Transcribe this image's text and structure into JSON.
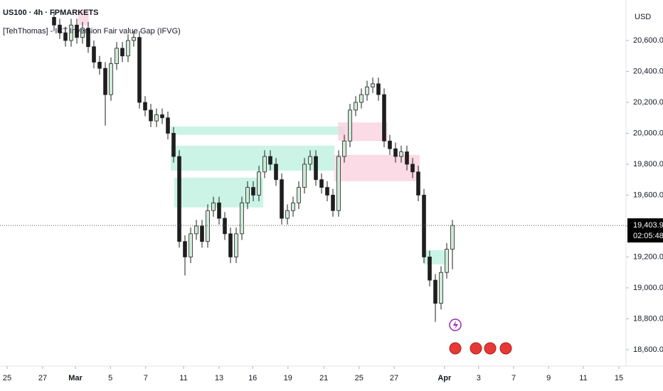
{
  "chart_data": {
    "type": "candlestick",
    "title": "US100 · 4h · FPMARKETS",
    "subtitle": "[TehThomas] - ICT Inversion Fair value Gap (IFVG)",
    "currency": "USD",
    "xlim": [
      0,
      110
    ],
    "xticks": [
      {
        "value": 1.25,
        "label": "25"
      },
      {
        "value": 7.5,
        "label": "27"
      },
      {
        "value": 13.25,
        "label": "Mar"
      },
      {
        "value": 19.4,
        "label": "5"
      },
      {
        "value": 25.6,
        "label": "7"
      },
      {
        "value": 32.25,
        "label": "11"
      },
      {
        "value": 38.5,
        "label": "13"
      },
      {
        "value": 44.4,
        "label": "16"
      },
      {
        "value": 50.6,
        "label": "19"
      },
      {
        "value": 56.9,
        "label": "21"
      },
      {
        "value": 63.1,
        "label": "25"
      },
      {
        "value": 69.25,
        "label": "27"
      },
      {
        "value": 78.1,
        "label": "Apr"
      },
      {
        "value": 84.1,
        "label": "3"
      },
      {
        "value": 90.25,
        "label": "7"
      },
      {
        "value": 96.4,
        "label": "9"
      },
      {
        "value": 102.5,
        "label": "11"
      },
      {
        "value": 108.75,
        "label": "15"
      }
    ],
    "ylim": [
      18494,
      20862
    ],
    "yticks": [
      {
        "value": 18600,
        "label": "18,600.00"
      },
      {
        "value": 18800,
        "label": "18,800.00"
      },
      {
        "value": 19000,
        "label": "19,000.00"
      },
      {
        "value": 19200,
        "label": "19,200.00"
      },
      {
        "value": 19400,
        "label": "19,400.00"
      },
      {
        "value": 19600,
        "label": "19,600.00"
      },
      {
        "value": 19800,
        "label": "19,800.00"
      },
      {
        "value": 20000,
        "label": "20,000.00"
      },
      {
        "value": 20200,
        "label": "20,200.00"
      },
      {
        "value": 20400,
        "label": "20,400.00"
      },
      {
        "value": 20600,
        "label": "20,600.00"
      }
    ],
    "up_color": "#cdebd8",
    "down_color": "#1e1e1e",
    "x": [
      9.5,
      10.5,
      11.5,
      12.5,
      13.5,
      14.5,
      15.5,
      16.5,
      17.5,
      18.5,
      19.5,
      20.5,
      21.5,
      22.5,
      23.5,
      24.5,
      25.5,
      26.5,
      27.5,
      28.5,
      29.5,
      30.5,
      31.5,
      32.5,
      33.5,
      34.5,
      35.5,
      36.5,
      37.5,
      38.5,
      39.5,
      40.5,
      41.5,
      42.5,
      43.5,
      44.5,
      45.5,
      46.5,
      47.5,
      48.5,
      49.5,
      50.5,
      51.5,
      52.5,
      53.5,
      54.5,
      55.5,
      56.5,
      57.5,
      58.5,
      59.5,
      60.5,
      61.5,
      62.5,
      63.5,
      64.5,
      65.5,
      66.5,
      67.5,
      68.5,
      69.5,
      70.5,
      71.5,
      72.5,
      73.5,
      74.5,
      75.5,
      76.5,
      77.5,
      78.5,
      79.5
    ],
    "open": [
      20750,
      20700,
      20650,
      20600,
      20700,
      20620,
      20680,
      20560,
      20460,
      20420,
      20250,
      20450,
      20550,
      20500,
      20600,
      20620,
      20200,
      20150,
      20080,
      20120,
      20100,
      20000,
      19850,
      19300,
      19200,
      19350,
      19400,
      19300,
      19500,
      19550,
      19450,
      19350,
      19200,
      19350,
      19550,
      19650,
      19600,
      19750,
      19850,
      19800,
      19700,
      19450,
      19500,
      19550,
      19650,
      19800,
      19850,
      19700,
      19650,
      19600,
      19500,
      19850,
      19950,
      20150,
      20200,
      20250,
      20300,
      20320,
      20250,
      19950,
      19900,
      19850,
      19880,
      19800,
      19750,
      19600,
      19200,
      19050,
      18900,
      19100,
      19250
    ],
    "high": [
      20790,
      20740,
      20690,
      20740,
      20740,
      20720,
      20720,
      20600,
      20500,
      20460,
      20490,
      20590,
      20590,
      20640,
      20660,
      20660,
      20240,
      20190,
      20160,
      20160,
      20140,
      20040,
      19890,
      19340,
      19390,
      19440,
      19440,
      19540,
      19590,
      19590,
      19490,
      19390,
      19390,
      19590,
      19690,
      19690,
      19790,
      19890,
      19890,
      19840,
      19740,
      19540,
      19590,
      19690,
      19840,
      19890,
      19890,
      19740,
      19690,
      19640,
      19890,
      19990,
      20190,
      20240,
      20290,
      20340,
      20360,
      20360,
      20290,
      19990,
      19940,
      19920,
      19920,
      19840,
      19790,
      19640,
      19240,
      19090,
      19140,
      19290,
      19440
    ],
    "low": [
      20660,
      20610,
      20560,
      20560,
      20580,
      20580,
      20520,
      20420,
      20380,
      20050,
      20210,
      20410,
      20460,
      20460,
      20560,
      20160,
      20110,
      20040,
      20040,
      20060,
      19960,
      19810,
      19260,
      19080,
      19160,
      19310,
      19260,
      19260,
      19460,
      19410,
      19310,
      19160,
      19160,
      19310,
      19510,
      19560,
      19560,
      19710,
      19760,
      19660,
      19410,
      19410,
      19460,
      19510,
      19610,
      19760,
      19660,
      19610,
      19560,
      19460,
      19460,
      19810,
      19910,
      20110,
      20160,
      20210,
      20260,
      20210,
      19910,
      19860,
      19810,
      19810,
      19760,
      19710,
      19560,
      19160,
      19010,
      18780,
      18860,
      19060,
      19120
    ],
    "close": [
      20700,
      20650,
      20600,
      20700,
      20620,
      20680,
      20560,
      20460,
      20420,
      20250,
      20450,
      20550,
      20500,
      20600,
      20620,
      20200,
      20150,
      20080,
      20120,
      20100,
      20000,
      19850,
      19300,
      19200,
      19350,
      19400,
      19300,
      19500,
      19550,
      19450,
      19350,
      19200,
      19350,
      19550,
      19650,
      19600,
      19750,
      19850,
      19800,
      19700,
      19450,
      19500,
      19550,
      19650,
      19800,
      19850,
      19700,
      19650,
      19600,
      19500,
      19850,
      19950,
      20150,
      20200,
      20250,
      20300,
      20320,
      20250,
      19950,
      19900,
      19850,
      19880,
      19800,
      19750,
      19600,
      19200,
      19050,
      18900,
      19100,
      19250,
      19403.94
    ],
    "zones": [
      {
        "x0": 30,
        "x1": 60.6,
        "low": 19990,
        "high": 20044,
        "color": "#b9f0dd"
      },
      {
        "x0": 30,
        "x1": 58.75,
        "low": 19758,
        "high": 19920,
        "color": "#b9f0dd"
      },
      {
        "x0": 30.6,
        "x1": 46.25,
        "low": 19520,
        "high": 19713,
        "color": "#b9f0dd"
      },
      {
        "x0": 59.4,
        "x1": 68.1,
        "low": 19950,
        "high": 20070,
        "color": "#f9cfdc"
      },
      {
        "x0": 58.75,
        "x1": 73.75,
        "low": 19690,
        "high": 19860,
        "color": "#f9cfdc"
      },
      {
        "x0": 74.4,
        "x1": 78.1,
        "low": 19152,
        "high": 19244,
        "color": "#b9f0dd"
      },
      {
        "x0": 13.75,
        "x1": 15.6,
        "low": 20700,
        "high": 20800,
        "color": "#f9cfdc"
      }
    ],
    "last_price": {
      "value": 19403.94,
      "label": "19,403.94"
    },
    "countdown": "02:05:48"
  }
}
